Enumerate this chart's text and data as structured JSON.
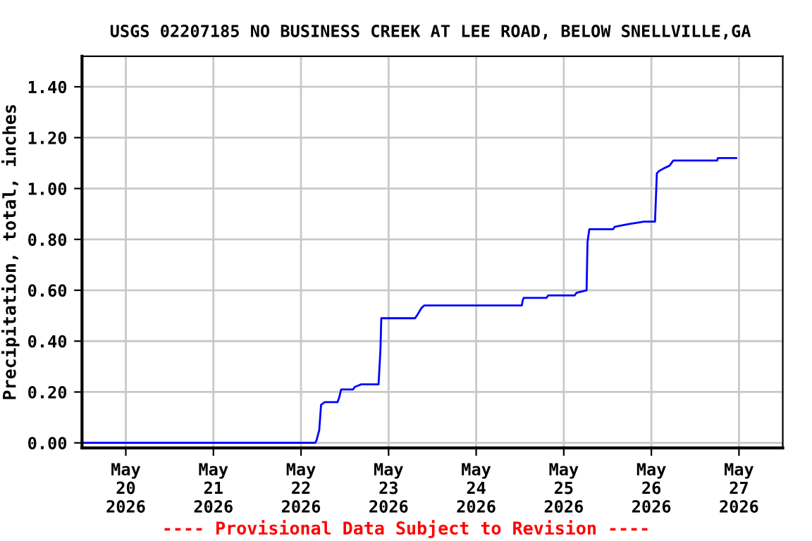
{
  "chart_data": {
    "type": "line",
    "title": "USGS 02207185 NO BUSINESS CREEK AT LEE ROAD, BELOW SNELLVILLE,GA",
    "ylabel": "Precipitation, total, inches",
    "x": [
      "2026-05-19T12:00",
      "2026-05-22T03:54",
      "2026-05-22T04:15",
      "2026-05-22T05:00",
      "2026-05-22T05:30",
      "2026-05-22T06:30",
      "2026-05-22T10:00",
      "2026-05-22T10:30",
      "2026-05-22T11:00",
      "2026-05-22T14:15",
      "2026-05-22T14:45",
      "2026-05-22T16:30",
      "2026-05-22T21:15",
      "2026-05-22T21:45",
      "2026-05-22T22:00",
      "2026-05-23T07:15",
      "2026-05-23T07:45",
      "2026-05-23T09:00",
      "2026-05-23T09:45",
      "2026-05-24T12:30",
      "2026-05-24T12:45",
      "2026-05-24T13:00",
      "2026-05-24T19:15",
      "2026-05-24T19:45",
      "2026-05-25T03:00",
      "2026-05-25T03:30",
      "2026-05-25T06:15",
      "2026-05-25T06:30",
      "2026-05-25T07:00",
      "2026-05-25T13:30",
      "2026-05-25T14:00",
      "2026-05-25T17:45",
      "2026-05-25T22:00",
      "2026-05-26T01:00",
      "2026-05-26T01:30",
      "2026-05-26T02:15",
      "2026-05-26T03:30",
      "2026-05-26T05:00",
      "2026-05-26T06:00",
      "2026-05-26T18:00",
      "2026-05-26T18:15",
      "2026-05-26T23:15"
    ],
    "series": [
      {
        "color": "#0000ff",
        "values": [
          0.0,
          0.0,
          0.01,
          0.05,
          0.15,
          0.16,
          0.16,
          0.18,
          0.21,
          0.21,
          0.22,
          0.23,
          0.23,
          0.36,
          0.49,
          0.49,
          0.5,
          0.53,
          0.54,
          0.54,
          0.56,
          0.57,
          0.57,
          0.58,
          0.58,
          0.59,
          0.6,
          0.79,
          0.84,
          0.84,
          0.85,
          0.86,
          0.87,
          0.87,
          1.06,
          1.07,
          1.08,
          1.09,
          1.11,
          1.11,
          1.12,
          1.12
        ]
      }
    ],
    "xlim": [
      "2026-05-19T12:00",
      "2026-05-27T12:00"
    ],
    "xticks": [
      {
        "value": "2026-05-20",
        "label": "May\n20\n2026"
      },
      {
        "value": "2026-05-21",
        "label": "May\n21\n2026"
      },
      {
        "value": "2026-05-22",
        "label": "May\n22\n2026"
      },
      {
        "value": "2026-05-23",
        "label": "May\n23\n2026"
      },
      {
        "value": "2026-05-24",
        "label": "May\n24\n2026"
      },
      {
        "value": "2026-05-25",
        "label": "May\n25\n2026"
      },
      {
        "value": "2026-05-26",
        "label": "May\n26\n2026"
      },
      {
        "value": "2026-05-27",
        "label": "May\n27\n2026"
      }
    ],
    "ylim": [
      -0.02,
      1.52
    ],
    "yticks": [
      {
        "value": 0,
        "label": "0.00"
      },
      {
        "value": 0.2,
        "label": "0.20"
      },
      {
        "value": 0.4,
        "label": "0.40"
      },
      {
        "value": 0.6,
        "label": "0.60"
      },
      {
        "value": 0.8,
        "label": "0.80"
      },
      {
        "value": 1.0,
        "label": "1.00"
      },
      {
        "value": 1.2,
        "label": "1.20"
      },
      {
        "value": 1.4,
        "label": "1.40"
      }
    ],
    "grid": true,
    "annotations": [
      "---- Provisional Data Subject to Revision ----"
    ]
  }
}
